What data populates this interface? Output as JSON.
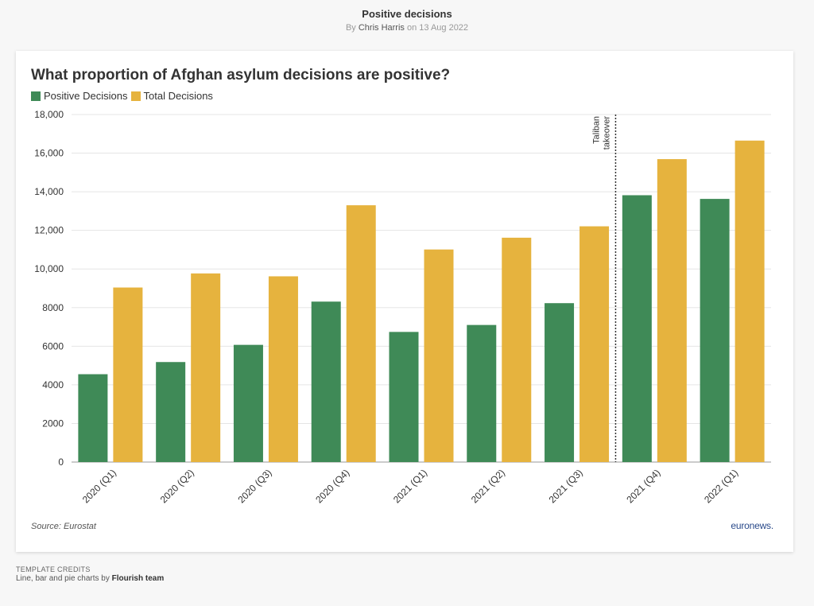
{
  "header": {
    "title": "Positive decisions",
    "byline_prefix": "By",
    "author": "Chris Harris",
    "date_text": "on 13 Aug 2022"
  },
  "source": "Source: Eurostat",
  "logo": {
    "text": "euronews",
    "dot": "."
  },
  "credits": {
    "label": "TEMPLATE CREDITS",
    "line_prefix": "Line, bar and pie charts by",
    "line_author": "Flourish team"
  },
  "colors": {
    "positive": "#3f8a57",
    "total": "#e6b33e",
    "grid": "#e5e5e5",
    "annotation": "#333333"
  },
  "chart_data": {
    "type": "bar",
    "title": "What proportion of Afghan asylum decisions are positive?",
    "xlabel": "",
    "ylabel": "",
    "ylim": [
      0,
      18000
    ],
    "yticks": [
      0,
      2000,
      4000,
      6000,
      8000,
      10000,
      12000,
      14000,
      16000,
      18000
    ],
    "ytick_labels": [
      "0",
      "2000",
      "4000",
      "6000",
      "8000",
      "10,000",
      "12,000",
      "14,000",
      "16,000",
      "18,000"
    ],
    "grid": true,
    "legend_position": "top-left",
    "categories": [
      "2020 (Q1)",
      "2020 (Q2)",
      "2020 (Q3)",
      "2020 (Q4)",
      "2021 (Q1)",
      "2021 (Q2)",
      "2021 (Q3)",
      "2021 (Q4)",
      "2022 (Q1)"
    ],
    "series": [
      {
        "name": "Positive Decisions",
        "values": [
          4550,
          5180,
          6070,
          8310,
          6740,
          7100,
          8230,
          13820,
          13630
        ]
      },
      {
        "name": "Total Decisions",
        "values": [
          9040,
          9770,
          9620,
          13300,
          11010,
          11620,
          12210,
          15690,
          16650
        ]
      }
    ],
    "annotation": {
      "text": [
        "Taliban",
        "takeover"
      ],
      "x_between": [
        "2021 (Q3)",
        "2021 (Q4)"
      ]
    }
  }
}
